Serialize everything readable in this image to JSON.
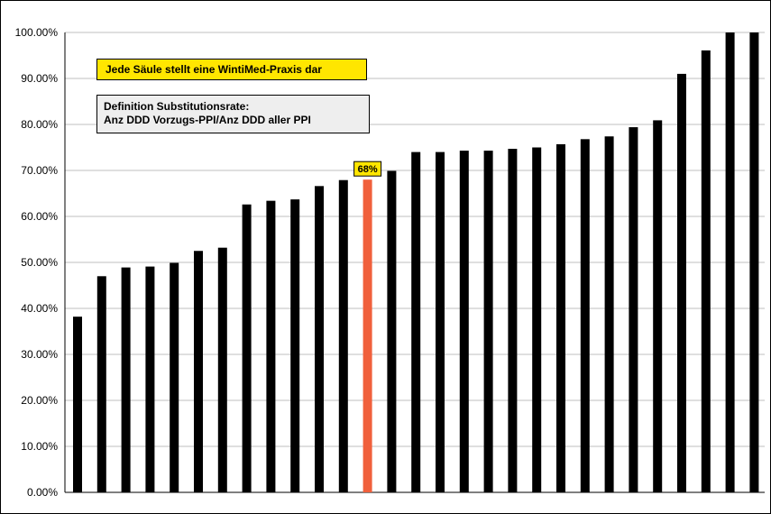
{
  "chart_data": {
    "type": "bar",
    "title": "",
    "xlabel": "",
    "ylabel": "",
    "ylim": [
      0,
      100
    ],
    "y_ticks": [
      "0.00%",
      "10.00%",
      "20.00%",
      "30.00%",
      "40.00%",
      "50.00%",
      "60.00%",
      "70.00%",
      "80.00%",
      "90.00%",
      "100.00%"
    ],
    "grid": true,
    "values": [
      38.2,
      47,
      48.9,
      49.1,
      49.9,
      52.5,
      53.2,
      62.6,
      63.4,
      63.7,
      66.6,
      67.9,
      68,
      69.9,
      74,
      74,
      74.3,
      74.3,
      74.7,
      75,
      75.7,
      76.8,
      77.4,
      79.4,
      80.9,
      91,
      96.1,
      100,
      100
    ],
    "highlight_index": 12,
    "highlight_label": "68%",
    "colors": {
      "bar": "#000000",
      "highlight": "#f0603c",
      "label_bg": "#ffe600",
      "grid": "#bfbfbf"
    },
    "annotations": {
      "yellow": "Jede Säule stellt eine WintiMed-Praxis dar",
      "grey_line1": "Definition Substitutionsrate:",
      "grey_line2": "Anz DDD Vorzugs-PPI/Anz DDD aller PPI"
    }
  }
}
